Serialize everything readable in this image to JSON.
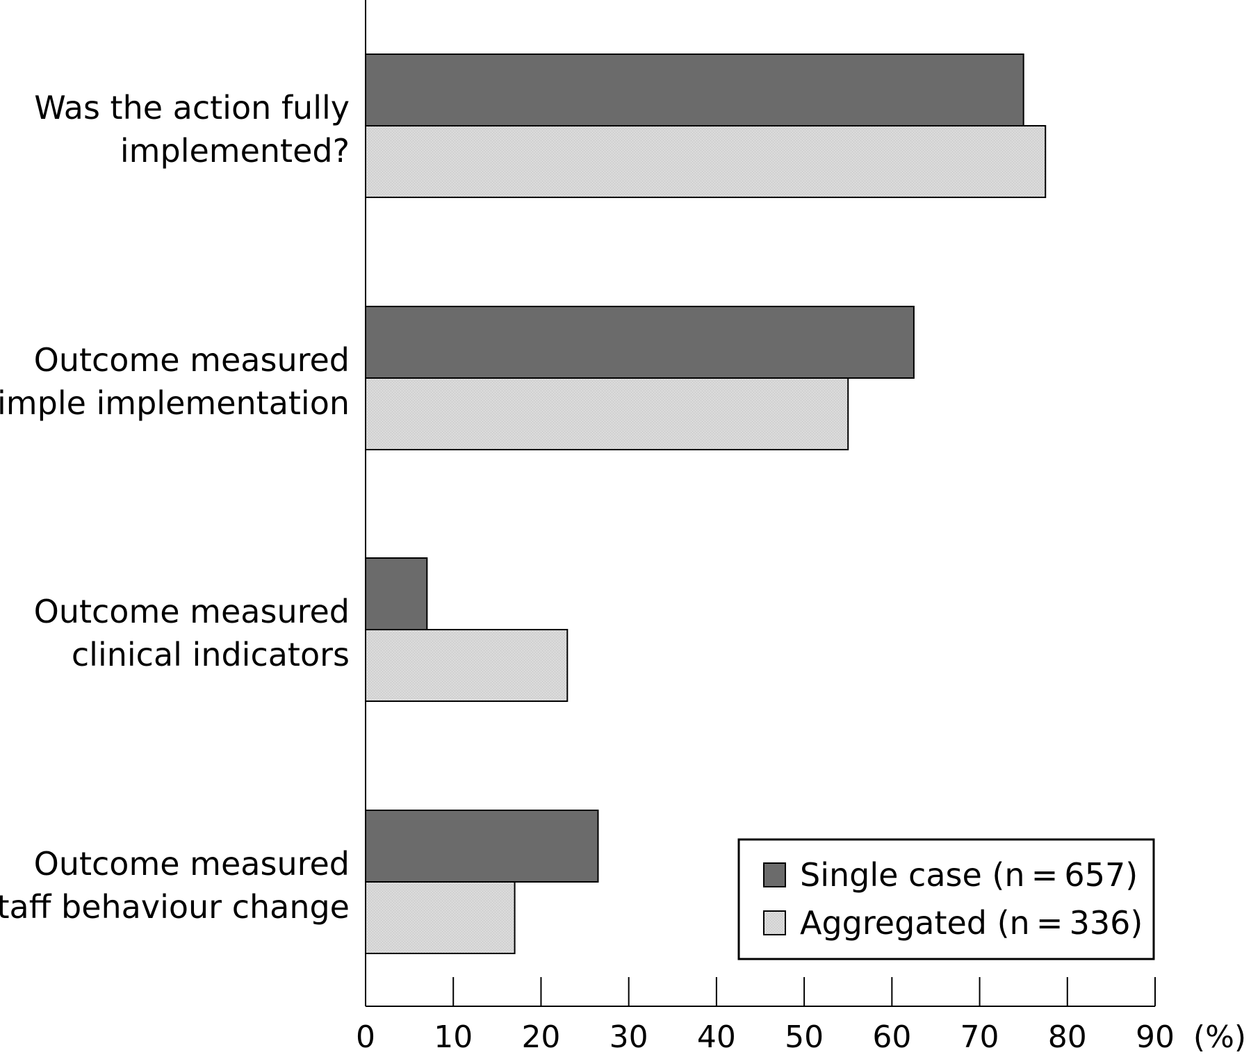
{
  "chart_data": {
    "type": "bar",
    "orientation": "horizontal",
    "categories": [
      [
        "Was the action fully",
        "implemented?"
      ],
      [
        "Outcome measured",
        "simple implementation"
      ],
      [
        "Outcome measured",
        "clinical indicators"
      ],
      [
        "Outcome measured",
        "staff behaviour change"
      ]
    ],
    "series": [
      {
        "name": "Single case (n = 657)",
        "values": [
          75,
          62.5,
          7,
          26.5
        ],
        "color": "#6b6b6b"
      },
      {
        "name": "Aggregated (n = 336)",
        "values": [
          77.5,
          55,
          23,
          17
        ],
        "color": "#d9d9d9"
      }
    ],
    "xticks": [
      "0",
      "10",
      "20",
      "30",
      "40",
      "50",
      "60",
      "70",
      "80",
      "90"
    ],
    "xlim": [
      0,
      90
    ],
    "xunit": "(%)",
    "legend": "bottom-right",
    "grid": false
  }
}
